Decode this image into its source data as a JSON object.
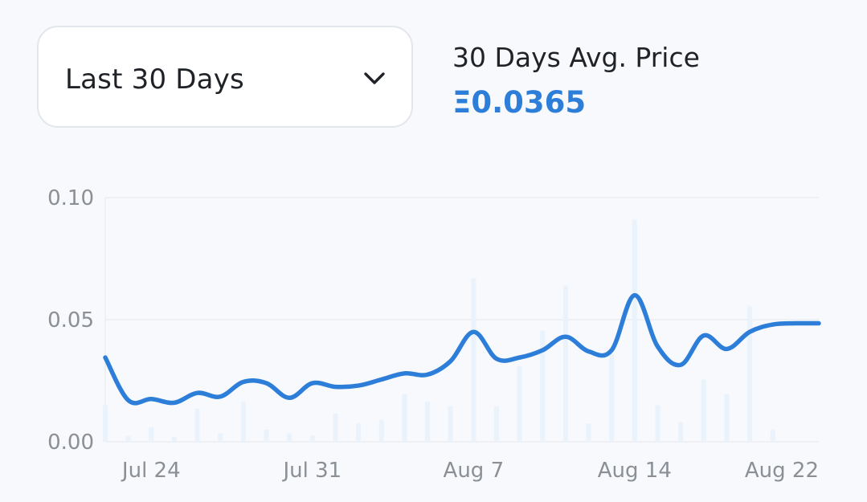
{
  "range_select": {
    "label": "Last 30 Days",
    "icon": "chevron-down-icon"
  },
  "summary": {
    "label": "30 Days Avg. Price",
    "value": "Ξ0.0365",
    "accent": "#2d7ed8"
  },
  "chart_data": {
    "type": "line",
    "title": "",
    "xlabel": "",
    "ylabel": "",
    "ylim": [
      0,
      0.1
    ],
    "yticks": [
      "0.10",
      "0.05",
      "0.00"
    ],
    "xticks": [
      "Jul 24",
      "Jul 31",
      "Aug 7",
      "Aug 14",
      "Aug 22"
    ],
    "grid": true,
    "colors": {
      "line": "#2d7ed8",
      "bars": "#eaf3fc",
      "grid": "#e9ecef"
    },
    "series": [
      {
        "type": "line",
        "x": [
          "Jul 22",
          "Jul 23",
          "Jul 24",
          "Jul 25",
          "Jul 26",
          "Jul 27",
          "Jul 28",
          "Jul 29",
          "Jul 30",
          "Jul 31",
          "Aug 1",
          "Aug 2",
          "Aug 3",
          "Aug 4",
          "Aug 5",
          "Aug 6",
          "Aug 7",
          "Aug 8",
          "Aug 9",
          "Aug 10",
          "Aug 11",
          "Aug 12",
          "Aug 13",
          "Aug 14",
          "Aug 15",
          "Aug 16",
          "Aug 17",
          "Aug 18",
          "Aug 19",
          "Aug 20",
          "Aug 21",
          "Aug 22"
        ],
        "values": [
          0.0345,
          0.017,
          0.0175,
          0.016,
          0.02,
          0.0185,
          0.0245,
          0.024,
          0.018,
          0.024,
          0.0225,
          0.023,
          0.0255,
          0.028,
          0.0275,
          0.033,
          0.045,
          0.034,
          0.0345,
          0.0375,
          0.043,
          0.037,
          0.0375,
          0.06,
          0.039,
          0.0315,
          0.0435,
          0.038,
          0.045,
          0.048,
          0.0485,
          0.0485
        ]
      },
      {
        "type": "bar",
        "x": [
          "Jul 22",
          "Jul 23",
          "Jul 24",
          "Jul 25",
          "Jul 26",
          "Jul 27",
          "Jul 28",
          "Jul 29",
          "Jul 30",
          "Jul 31",
          "Aug 1",
          "Aug 2",
          "Aug 3",
          "Aug 4",
          "Aug 5",
          "Aug 6",
          "Aug 7",
          "Aug 8",
          "Aug 9",
          "Aug 10",
          "Aug 11",
          "Aug 12",
          "Aug 13",
          "Aug 14",
          "Aug 15",
          "Aug 16",
          "Aug 17",
          "Aug 18",
          "Aug 19",
          "Aug 20",
          "Aug 21",
          "Aug 22"
        ],
        "values": [
          0.015,
          0.0025,
          0.006,
          0.002,
          0.0135,
          0.0035,
          0.0165,
          0.005,
          0.0035,
          0.0025,
          0.0115,
          0.0075,
          0.009,
          0.0195,
          0.0165,
          0.0145,
          0.067,
          0.0145,
          0.031,
          0.0455,
          0.064,
          0.0075,
          0.036,
          0.091,
          0.015,
          0.008,
          0.0255,
          0.0195,
          0.0555,
          0.005,
          0.0,
          0.0
        ]
      }
    ]
  }
}
